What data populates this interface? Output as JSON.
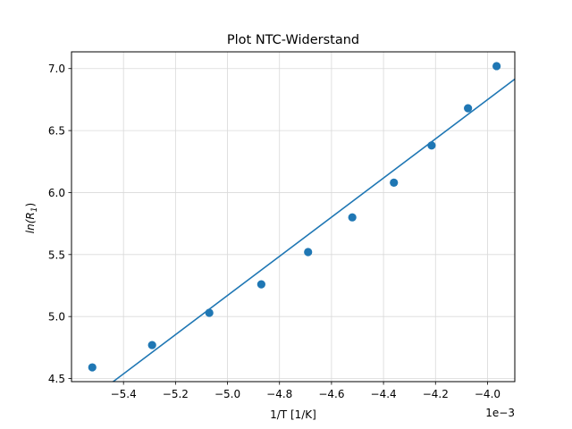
{
  "chart_data": {
    "type": "scatter",
    "title": "Plot NTC-Widerstand",
    "xlabel": "1/T [1/K]",
    "ylabel": "ln(R1)",
    "ylabel_parts": {
      "main": "ln(R",
      "sub": "1",
      "close": ")"
    },
    "offset_text": "1e−3",
    "x_scale_exponent": -3,
    "xlim": [
      -5.6,
      -3.895
    ],
    "ylim": [
      4.475,
      7.135
    ],
    "x_ticks": [
      -5.4,
      -5.2,
      -5.0,
      -4.8,
      -4.6,
      -4.4,
      -4.2,
      -4.0
    ],
    "x_tick_labels": [
      "−5.4",
      "−5.2",
      "−5.0",
      "−4.8",
      "−4.6",
      "−4.4",
      "−4.2",
      "−4.0"
    ],
    "y_ticks": [
      4.5,
      5.0,
      5.5,
      6.0,
      6.5,
      7.0
    ],
    "y_tick_labels": [
      "4.5",
      "5.0",
      "5.5",
      "6.0",
      "6.5",
      "7.0"
    ],
    "grid": true,
    "legend": false,
    "color": "#1f77b4",
    "grid_color": "#d9d9d9",
    "series": [
      {
        "kind": "points",
        "x": [
          -5.52,
          -5.29,
          -5.07,
          -4.87,
          -4.69,
          -4.52,
          -4.36,
          -4.215,
          -4.075,
          -3.965
        ],
        "y": [
          4.59,
          4.77,
          5.03,
          5.26,
          5.52,
          5.8,
          6.08,
          6.38,
          6.68,
          7.02
        ]
      },
      {
        "kind": "fit-line",
        "x": [
          -5.462,
          -3.895
        ],
        "y": [
          4.44,
          6.915
        ]
      }
    ]
  }
}
